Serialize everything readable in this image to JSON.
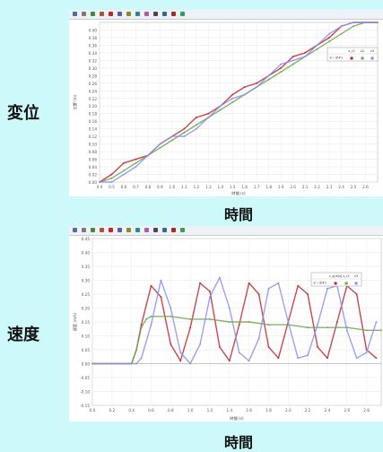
{
  "labels": {
    "top_side": "変位",
    "bottom_side": "速度",
    "top_x_caption": "時間",
    "bottom_x_caption": "時間"
  },
  "colors": {
    "background": "#cdf9fb",
    "red": "#c0272d",
    "red_light": "#d98888",
    "green": "#6aa84f",
    "blue": "#8e8ef0"
  },
  "toolbar_icons": [
    "menu-icon",
    "grid-icon",
    "zoom-icon",
    "cursor-icon",
    "ruler-icon",
    "chart-icon",
    "fit-icon",
    "export-icon",
    "palette-icon",
    "refresh-icon",
    "settings-icon",
    "help-icon",
    "color-icon"
  ],
  "chart_data": [
    {
      "type": "line",
      "xlabel": "時間 (s)",
      "ylabel": "位置 (m)",
      "xlim": [
        0.4,
        2.7
      ],
      "ylim": [
        0.0,
        0.42
      ],
      "x_ticks": [
        "0.4",
        "0.5",
        "0.6",
        "0.7",
        "0.8",
        "0.9",
        "1.0",
        "1.1",
        "1.2",
        "1.3",
        "1.4",
        "1.5",
        "1.6",
        "1.7",
        "1.8",
        "1.9",
        "2.0",
        "2.1",
        "2.2",
        "2.3",
        "2.4",
        "2.5",
        "2.6"
      ],
      "y_ticks": [
        "0.00",
        "0.02",
        "0.04",
        "0.06",
        "0.08",
        "0.10",
        "0.12",
        "0.14",
        "0.16",
        "0.18",
        "0.20",
        "0.22",
        "0.24",
        "0.26",
        "0.28",
        "0.30",
        "0.32",
        "0.34",
        "0.36",
        "0.38",
        "0.40"
      ],
      "legend": {
        "headers": [
          "",
          "x_r2",
          "x2",
          "x3"
        ],
        "row_label": "データ#1"
      },
      "series": [
        {
          "color": "red",
          "x": [
            0.4,
            0.5,
            0.6,
            0.7,
            0.8,
            0.9,
            1.0,
            1.1,
            1.2,
            1.3,
            1.4,
            1.5,
            1.6,
            1.7,
            1.8,
            1.9,
            2.0,
            2.1,
            2.2,
            2.3,
            2.4,
            2.5,
            2.6,
            2.7
          ],
          "y": [
            0.0,
            0.02,
            0.05,
            0.06,
            0.07,
            0.1,
            0.12,
            0.14,
            0.17,
            0.18,
            0.2,
            0.23,
            0.25,
            0.26,
            0.28,
            0.3,
            0.33,
            0.34,
            0.36,
            0.38,
            0.41,
            0.42,
            0.42,
            0.42
          ]
        },
        {
          "color": "green",
          "x": [
            0.4,
            0.5,
            0.6,
            0.7,
            0.8,
            0.9,
            1.0,
            1.1,
            1.2,
            1.3,
            1.4,
            1.5,
            1.6,
            1.7,
            1.8,
            1.9,
            2.0,
            2.1,
            2.2,
            2.3,
            2.4,
            2.5,
            2.6,
            2.7
          ],
          "y": [
            0.0,
            0.01,
            0.03,
            0.05,
            0.07,
            0.09,
            0.11,
            0.13,
            0.15,
            0.17,
            0.19,
            0.21,
            0.23,
            0.25,
            0.27,
            0.29,
            0.31,
            0.33,
            0.35,
            0.37,
            0.39,
            0.41,
            0.42,
            0.42
          ]
        },
        {
          "color": "blue",
          "x": [
            0.4,
            0.5,
            0.6,
            0.7,
            0.8,
            0.9,
            1.0,
            1.1,
            1.2,
            1.3,
            1.4,
            1.5,
            1.6,
            1.7,
            1.8,
            1.9,
            2.0,
            2.1,
            2.2,
            2.3,
            2.4,
            2.5,
            2.6,
            2.7
          ],
          "y": [
            0.0,
            0.0,
            0.02,
            0.04,
            0.07,
            0.1,
            0.12,
            0.12,
            0.14,
            0.17,
            0.2,
            0.22,
            0.23,
            0.25,
            0.28,
            0.31,
            0.32,
            0.33,
            0.36,
            0.39,
            0.41,
            0.42,
            0.42,
            0.42
          ]
        }
      ]
    },
    {
      "type": "line",
      "xlabel": "時間 (s)",
      "ylabel": "速度 (m/s)",
      "xlim": [
        0.0,
        2.95
      ],
      "ylim": [
        -0.15,
        0.45
      ],
      "x_ticks": [
        "0.0",
        "0.2",
        "0.4",
        "0.6",
        "0.8",
        "1.0",
        "1.2",
        "1.4",
        "1.6",
        "1.8",
        "2.0",
        "2.2",
        "2.4",
        "2.6",
        "2.8"
      ],
      "y_ticks": [
        "-0.15",
        "-0.10",
        "-0.05",
        "0.00",
        "0.05",
        "0.10",
        "0.15",
        "0.20",
        "0.25",
        "0.30",
        "0.35",
        "0.40",
        "0.45"
      ],
      "legend": {
        "headers": [
          "",
          "v_s[m/s]",
          "v_r2",
          "v3"
        ],
        "row_label": "データ#1"
      },
      "series": [
        {
          "color": "red",
          "x": [
            0.0,
            0.4,
            0.45,
            0.5,
            0.6,
            0.7,
            0.8,
            0.9,
            1.0,
            1.1,
            1.2,
            1.3,
            1.4,
            1.5,
            1.6,
            1.7,
            1.8,
            1.9,
            2.0,
            2.1,
            2.2,
            2.3,
            2.4,
            2.5,
            2.6,
            2.7,
            2.8,
            2.9
          ],
          "y": [
            0.0,
            0.0,
            0.05,
            0.14,
            0.28,
            0.24,
            0.07,
            0.01,
            0.13,
            0.29,
            0.26,
            0.06,
            0.01,
            0.14,
            0.29,
            0.25,
            0.06,
            0.02,
            0.15,
            0.28,
            0.25,
            0.06,
            0.02,
            0.15,
            0.28,
            0.25,
            0.05,
            0.02
          ]
        },
        {
          "color": "green",
          "x": [
            0.0,
            0.4,
            0.45,
            0.5,
            0.55,
            0.6,
            0.8,
            1.0,
            1.2,
            1.4,
            1.6,
            1.8,
            2.0,
            2.2,
            2.4,
            2.6,
            2.8,
            2.95
          ],
          "y": [
            0.0,
            0.0,
            0.05,
            0.13,
            0.16,
            0.17,
            0.17,
            0.16,
            0.16,
            0.15,
            0.15,
            0.14,
            0.14,
            0.13,
            0.13,
            0.13,
            0.12,
            0.12
          ]
        },
        {
          "color": "blue",
          "x": [
            0.0,
            0.45,
            0.5,
            0.6,
            0.7,
            0.8,
            0.9,
            1.0,
            1.1,
            1.2,
            1.3,
            1.4,
            1.5,
            1.6,
            1.7,
            1.8,
            1.9,
            2.0,
            2.1,
            2.2,
            2.3,
            2.4,
            2.5,
            2.6,
            2.7,
            2.8,
            2.9
          ],
          "y": [
            0.0,
            0.0,
            0.02,
            0.14,
            0.3,
            0.2,
            0.04,
            0.0,
            0.07,
            0.24,
            0.31,
            0.2,
            0.04,
            0.01,
            0.09,
            0.27,
            0.29,
            0.15,
            0.02,
            0.03,
            0.14,
            0.27,
            0.28,
            0.12,
            0.02,
            0.04,
            0.15
          ]
        }
      ]
    }
  ]
}
